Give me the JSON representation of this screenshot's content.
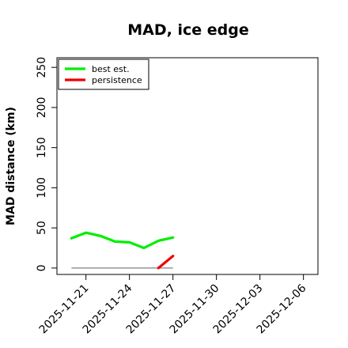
{
  "chart_data": {
    "type": "line",
    "title": "MAD, ice edge",
    "xlabel": "",
    "ylabel": "MAD distance (km)",
    "x_ticks": [
      "2025-11-21",
      "2025-11-24",
      "2025-11-27",
      "2025-11-30",
      "2025-12-03",
      "2025-12-06"
    ],
    "y_ticks": [
      0,
      50,
      100,
      150,
      200,
      250
    ],
    "xlim": [
      "2025-11-19",
      "2025-12-07"
    ],
    "ylim": [
      -8,
      262
    ],
    "legend_position": "top-left",
    "grid": false,
    "series": [
      {
        "name": "best est.",
        "color": "#00ee00",
        "x": [
          "2025-11-20",
          "2025-11-21",
          "2025-11-22",
          "2025-11-23",
          "2025-11-24",
          "2025-11-25",
          "2025-11-26",
          "2025-11-27"
        ],
        "values": [
          37,
          44,
          40,
          33,
          32,
          25,
          34,
          38
        ]
      },
      {
        "name": "persistence",
        "color": "#ee0000",
        "x": [
          "2025-11-26",
          "2025-11-27"
        ],
        "values": [
          0,
          15
        ]
      }
    ],
    "reference_line": {
      "color": "#808080",
      "x": [
        "2025-11-20",
        "2025-11-27"
      ],
      "value": 0
    }
  }
}
